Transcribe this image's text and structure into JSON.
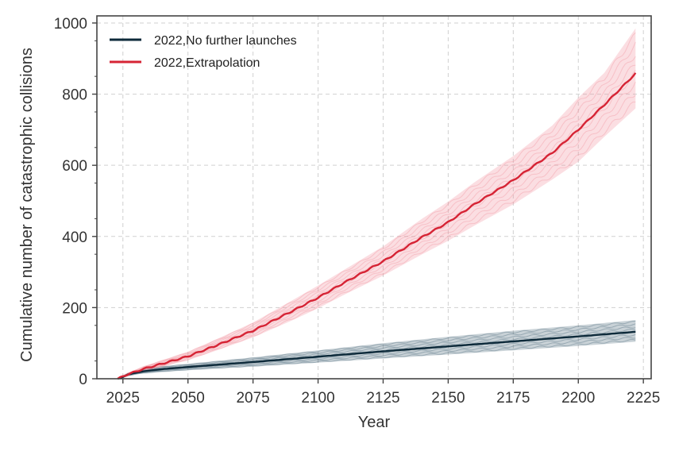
{
  "chart_data": {
    "type": "line",
    "title": "",
    "xlabel": "Year",
    "ylabel": "Cumulative number of catastrophic collisions",
    "xlim": [
      2015,
      2228
    ],
    "ylim": [
      0,
      1020
    ],
    "xticks": [
      2025,
      2050,
      2075,
      2100,
      2125,
      2150,
      2175,
      2200,
      2225
    ],
    "yticks": [
      0,
      200,
      400,
      600,
      800,
      1000
    ],
    "grid": true,
    "legend_position": "top-left",
    "series": [
      {
        "name": "2022,No further launches",
        "color": "#0d2a3a",
        "band_color": "#3d5f70",
        "x": [
          2023,
          2025,
          2027,
          2030,
          2033,
          2040,
          2050,
          2075,
          2100,
          2125,
          2150,
          2175,
          2200,
          2222
        ],
        "y": [
          0,
          5,
          12,
          17,
          21,
          27,
          33,
          47,
          62,
          77,
          91,
          105,
          119,
          132
        ],
        "band_low": [
          0,
          3,
          8,
          12,
          15,
          19,
          24,
          34,
          45,
          57,
          68,
          80,
          92,
          104
        ],
        "band_high": [
          0,
          8,
          16,
          22,
          27,
          35,
          42,
          60,
          80,
          100,
          118,
          135,
          150,
          165
        ]
      },
      {
        "name": "2022,Extrapolation",
        "color": "#d62435",
        "band_color": "#f08a96",
        "x": [
          2023,
          2025,
          2027,
          2030,
          2033,
          2040,
          2050,
          2060,
          2075,
          2090,
          2100,
          2110,
          2125,
          2140,
          2150,
          2160,
          2175,
          2190,
          2200,
          2210,
          2222
        ],
        "y": [
          0,
          6,
          13,
          20,
          28,
          42,
          63,
          91,
          135,
          190,
          228,
          270,
          330,
          398,
          440,
          490,
          558,
          635,
          700,
          770,
          858
        ],
        "band_low": [
          0,
          4,
          9,
          15,
          21,
          34,
          52,
          77,
          116,
          164,
          198,
          236,
          290,
          350,
          388,
          430,
          490,
          560,
          610,
          680,
          760
        ],
        "band_high": [
          0,
          9,
          17,
          26,
          35,
          52,
          76,
          108,
          158,
          220,
          262,
          306,
          372,
          450,
          498,
          552,
          626,
          712,
          790,
          860,
          985
        ]
      }
    ]
  }
}
